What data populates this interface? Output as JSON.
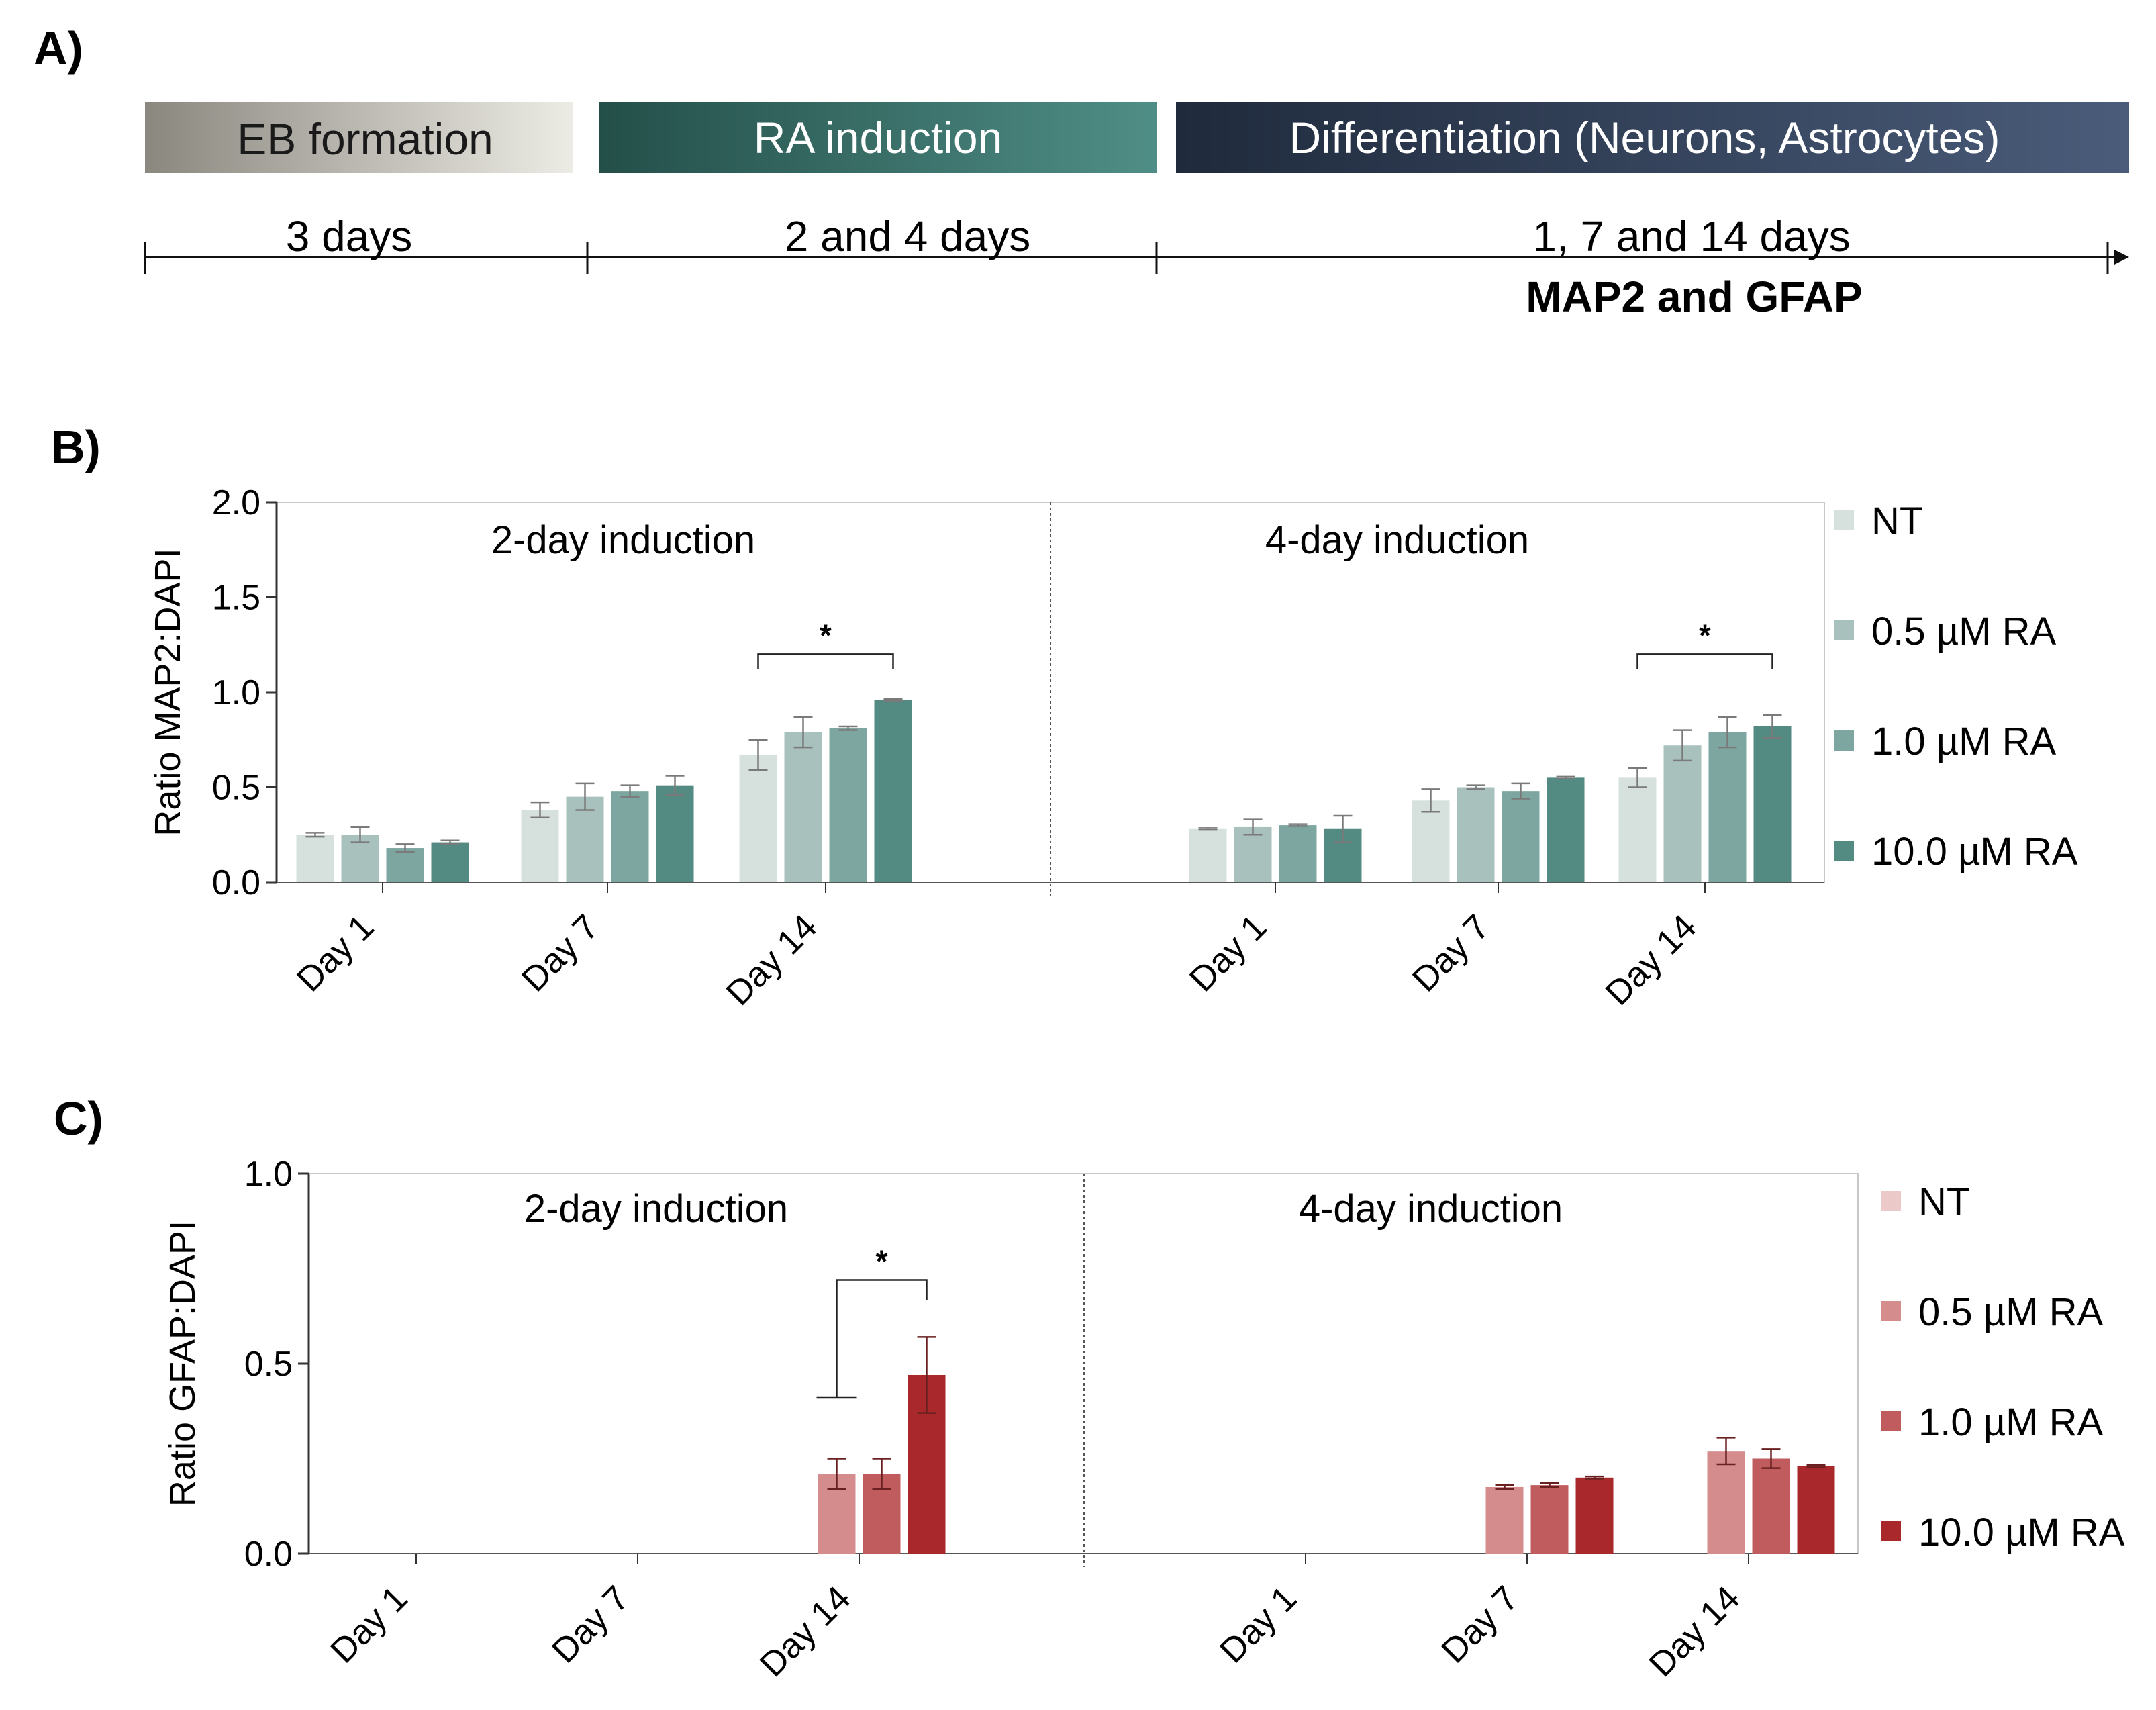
{
  "panels": {
    "a": "A)",
    "b": "B)",
    "c": "C)"
  },
  "timeline": {
    "stages": [
      {
        "label": "EB formation",
        "duration": "3 days",
        "color_start": "#8a877f",
        "color_end": "#ecebe4",
        "text_color": "#1a1a1a"
      },
      {
        "label": "RA induction",
        "duration": "2 and 4 days",
        "color_start": "#244f49",
        "color_end": "#4f8e86",
        "text_color": "#ffffff"
      },
      {
        "label": "Differentiation (Neurons, Astrocytes)",
        "duration": "1, 7 and 14 days",
        "color_start": "#1f2a3c",
        "color_end": "#4a5c7a",
        "text_color": "#ffffff"
      }
    ],
    "note": "MAP2 and GFAP"
  },
  "chart_data": [
    {
      "type": "bar",
      "ylabel": "Ratio MAP2:DAPI",
      "ylim": [
        0,
        2.0
      ],
      "yticks": [
        "0.0",
        "0.5",
        "1.0",
        "1.5",
        "2.0"
      ],
      "categories": [
        "Day 1",
        "Day 7",
        "Day 14"
      ],
      "colors": [
        "#d6e1de",
        "#a9c1bc",
        "#7ea6a0",
        "#538a82"
      ],
      "legend": [
        "NT",
        "0.5 µM RA",
        "1.0 µM RA",
        "10.0 µM RA"
      ],
      "legend_position": "right",
      "facets": [
        {
          "title": "2-day induction",
          "series": [
            {
              "name": "NT",
              "values": [
                0.25,
                0.38,
                0.67
              ],
              "errors": [
                0.01,
                0.04,
                0.08
              ]
            },
            {
              "name": "0.5 µM RA",
              "values": [
                0.25,
                0.45,
                0.79
              ],
              "errors": [
                0.04,
                0.07,
                0.08
              ]
            },
            {
              "name": "1.0 µM RA",
              "values": [
                0.18,
                0.48,
                0.81
              ],
              "errors": [
                0.02,
                0.03,
                0.01
              ]
            },
            {
              "name": "10.0 µM RA",
              "values": [
                0.21,
                0.51,
                0.96
              ],
              "errors": [
                0.01,
                0.05,
                0.005
              ]
            }
          ],
          "significance": [
            {
              "category": "Day 14",
              "from_series": 0,
              "to_series": 3,
              "bracket_y": 1.2,
              "label": "*"
            }
          ]
        },
        {
          "title": "4-day induction",
          "series": [
            {
              "name": "NT",
              "values": [
                0.28,
                0.43,
                0.55
              ],
              "errors": [
                0.005,
                0.06,
                0.05
              ]
            },
            {
              "name": "0.5 µM RA",
              "values": [
                0.29,
                0.5,
                0.72
              ],
              "errors": [
                0.04,
                0.01,
                0.08
              ]
            },
            {
              "name": "1.0 µM RA",
              "values": [
                0.3,
                0.48,
                0.79
              ],
              "errors": [
                0.005,
                0.04,
                0.08
              ]
            },
            {
              "name": "10.0 µM RA",
              "values": [
                0.28,
                0.55,
                0.82
              ],
              "errors": [
                0.07,
                0.005,
                0.06
              ]
            }
          ],
          "significance": [
            {
              "category": "Day 14",
              "from_series": 0,
              "to_series": 3,
              "bracket_y": 1.2,
              "label": "*"
            }
          ]
        }
      ]
    },
    {
      "type": "bar",
      "ylabel": "Ratio GFAP:DAPI",
      "ylim": [
        0,
        1.0
      ],
      "yticks": [
        "0.0",
        "0.5",
        "1.0"
      ],
      "categories": [
        "Day 1",
        "Day 7",
        "Day 14"
      ],
      "colors": [
        "#ecc9c9",
        "#d48c8d",
        "#c05c5d",
        "#a8282b"
      ],
      "legend": [
        "NT",
        "0.5 µM RA",
        "1.0 µM RA",
        "10.0 µM RA"
      ],
      "legend_position": "right",
      "facets": [
        {
          "title": "2-day induction",
          "series": [
            {
              "name": "NT",
              "values": [
                0,
                0,
                0
              ],
              "errors": [
                0,
                0,
                0
              ]
            },
            {
              "name": "0.5 µM RA",
              "values": [
                0,
                0,
                0.21
              ],
              "errors": [
                0,
                0,
                0.04
              ]
            },
            {
              "name": "1.0 µM RA",
              "values": [
                0,
                0,
                0.21
              ],
              "errors": [
                0,
                0,
                0.04
              ]
            },
            {
              "name": "10.0 µM RA",
              "values": [
                0,
                0,
                0.47
              ],
              "errors": [
                0,
                0,
                0.1
              ]
            }
          ],
          "significance": [
            {
              "category": "Day 14",
              "from_series": 1,
              "to_series": 3,
              "bracket_y": 0.72,
              "low_y": 0.41,
              "label": "*"
            }
          ]
        },
        {
          "title": "4-day induction",
          "series": [
            {
              "name": "NT",
              "values": [
                0,
                0,
                0
              ],
              "errors": [
                0,
                0,
                0
              ]
            },
            {
              "name": "0.5 µM RA",
              "values": [
                0,
                0.175,
                0.27
              ],
              "errors": [
                0,
                0.005,
                0.035
              ]
            },
            {
              "name": "1.0 µM RA",
              "values": [
                0,
                0.18,
                0.25
              ],
              "errors": [
                0,
                0.005,
                0.025
              ]
            },
            {
              "name": "10.0 µM RA",
              "values": [
                0,
                0.2,
                0.23
              ],
              "errors": [
                0,
                0.003,
                0.003
              ]
            }
          ],
          "significance": []
        }
      ]
    }
  ]
}
